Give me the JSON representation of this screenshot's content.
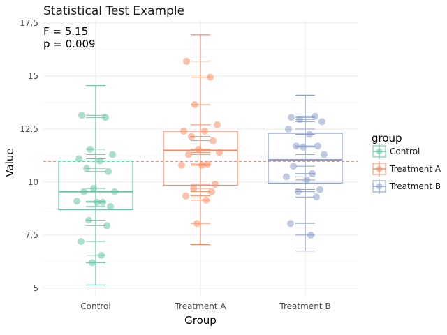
{
  "chart_data": {
    "type": "box",
    "title": "Statistical Test Example",
    "annotation": [
      "F = 5.15",
      "p = 0.009"
    ],
    "xlabel": "Group",
    "ylabel": "Value",
    "ylim": [
      4.6,
      17.6
    ],
    "yticks": [
      5,
      7.5,
      10,
      12.5,
      15,
      17.5
    ],
    "ytick_labels": [
      "5",
      "7.5",
      "10",
      "12.5",
      "15",
      "17.5"
    ],
    "categories": [
      "Control",
      "Treatment A",
      "Treatment B"
    ],
    "reference_line": 10.98,
    "legend": {
      "title": "group",
      "position": "right"
    },
    "grid": true,
    "series": [
      {
        "name": "Control",
        "color": "#66c2a5",
        "box": {
          "min": 5.15,
          "q1": 8.7,
          "median": 9.55,
          "q3": 11.0,
          "max": 14.55
        },
        "points": [
          13.15,
          13.05,
          11.55,
          11.3,
          11.1,
          11.0,
          10.65,
          10.5,
          9.7,
          9.55,
          9.55,
          9.05,
          9.1,
          9.05,
          8.85,
          8.2,
          7.95,
          7.2,
          6.55,
          6.2
        ]
      },
      {
        "name": "Treatment A",
        "color": "#fc8d62",
        "box": {
          "min": 7.05,
          "q1": 9.85,
          "median": 11.5,
          "q3": 12.4,
          "max": 16.95
        },
        "points": [
          15.7,
          14.95,
          13.65,
          12.7,
          12.4,
          12.4,
          12.15,
          11.95,
          11.55,
          11.4,
          11.3,
          10.85,
          10.8,
          10.8,
          9.9,
          9.7,
          9.55,
          9.35,
          9.15,
          8.05
        ]
      },
      {
        "name": "Treatment B",
        "color": "#8da0cb",
        "box": {
          "min": 6.75,
          "q1": 9.95,
          "median": 11.05,
          "q3": 12.3,
          "max": 14.1
        },
        "points": [
          13.05,
          13.1,
          12.95,
          12.85,
          12.5,
          12.25,
          11.7,
          11.7,
          11.65,
          11.3,
          10.75,
          10.4,
          10.25,
          10.1,
          9.65,
          9.55,
          9.3,
          8.05,
          7.5
        ]
      }
    ]
  }
}
